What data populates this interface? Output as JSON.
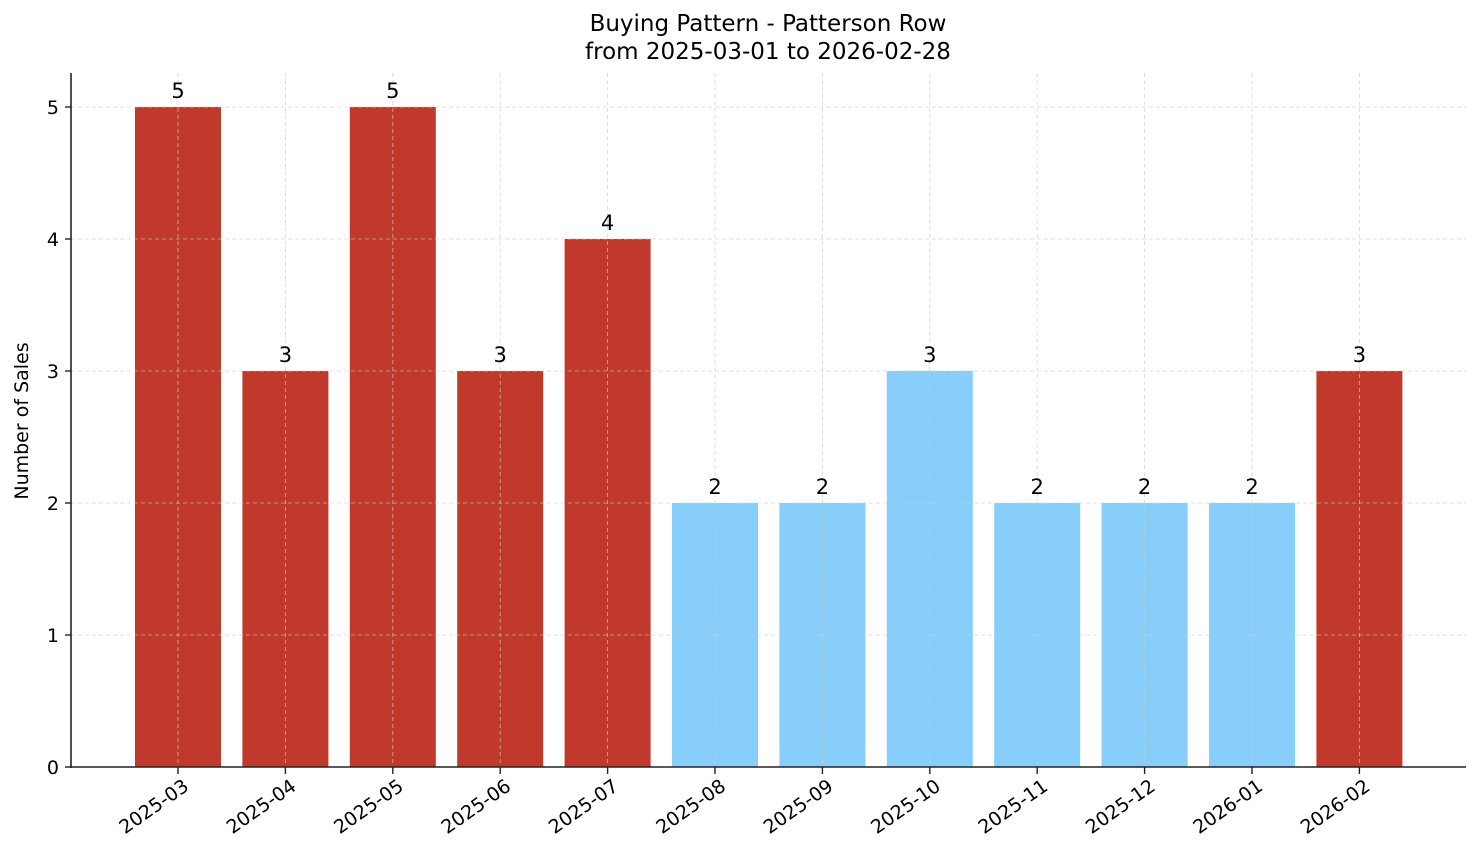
{
  "chart_data": {
    "type": "bar",
    "title": "Buying Pattern - Patterson Row",
    "subtitle": "from 2025-03-01 to 2026-02-28",
    "xlabel": "",
    "ylabel": "Number of Sales",
    "ylim": [
      0,
      5.25
    ],
    "yticks": [
      0,
      1,
      2,
      3,
      4,
      5
    ],
    "grid": true,
    "legend": null,
    "categories": [
      "2025-03",
      "2025-04",
      "2025-05",
      "2025-06",
      "2025-07",
      "2025-08",
      "2025-09",
      "2025-10",
      "2025-11",
      "2025-12",
      "2026-01",
      "2026-02"
    ],
    "values": [
      5,
      3,
      5,
      3,
      4,
      2,
      2,
      3,
      2,
      2,
      2,
      3
    ],
    "bar_colors": [
      "#c0392b",
      "#c0392b",
      "#c0392b",
      "#c0392b",
      "#c0392b",
      "#87cefa",
      "#87cefa",
      "#87cefa",
      "#87cefa",
      "#87cefa",
      "#87cefa",
      "#c0392b"
    ],
    "colors": {
      "high": "#c0392b",
      "low": "#87cefa"
    }
  }
}
